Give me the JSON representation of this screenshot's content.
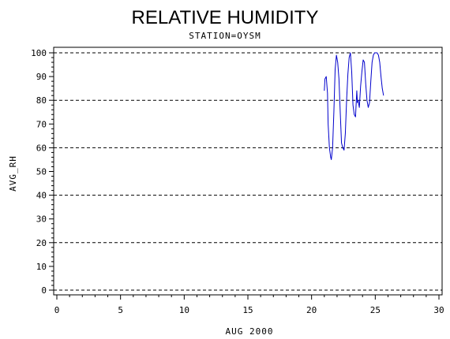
{
  "chart_data": {
    "type": "line",
    "title": "RELATIVE HUMIDITY",
    "subtitle": "STATION=OYSM",
    "xlabel": "AUG 2000",
    "ylabel": "AVG_RH",
    "xlim": [
      0,
      30
    ],
    "ylim": [
      0,
      100
    ],
    "x_ticks": [
      0,
      5,
      10,
      15,
      20,
      25,
      30
    ],
    "y_ticks": [
      0,
      10,
      20,
      30,
      40,
      50,
      60,
      70,
      80,
      90,
      100
    ],
    "grid_lines_y": [
      0,
      20,
      40,
      60,
      80,
      100
    ],
    "grid": "horizontal dashed",
    "legend": "none",
    "series": [
      {
        "color": "#0000cc",
        "x": [
          21.0,
          21.05,
          21.15,
          21.25,
          21.3,
          21.4,
          21.5,
          21.55,
          21.65,
          21.75,
          21.85,
          21.95,
          22.05,
          22.15,
          22.25,
          22.35,
          22.45,
          22.55,
          22.65,
          22.75,
          22.85,
          22.95,
          23.05,
          23.15,
          23.25,
          23.35,
          23.45,
          23.55,
          23.6,
          23.65,
          23.75,
          23.85,
          23.95,
          24.05,
          24.15,
          24.25,
          24.35,
          24.45,
          24.55,
          24.65,
          24.75,
          24.85,
          24.95,
          25.05,
          25.15,
          25.25,
          25.35,
          25.45,
          25.55,
          25.65
        ],
        "y": [
          84,
          89,
          90,
          83,
          70,
          60,
          56,
          55,
          60,
          75,
          93,
          99,
          96,
          89,
          75,
          62,
          60,
          59,
          66,
          80,
          91,
          98,
          100,
          92,
          78,
          74,
          73,
          84,
          79,
          80,
          77,
          86,
          92,
          97,
          96,
          87,
          80,
          77,
          79,
          88,
          96,
          99,
          100,
          100,
          100,
          99,
          96,
          90,
          85,
          82
        ]
      }
    ]
  }
}
